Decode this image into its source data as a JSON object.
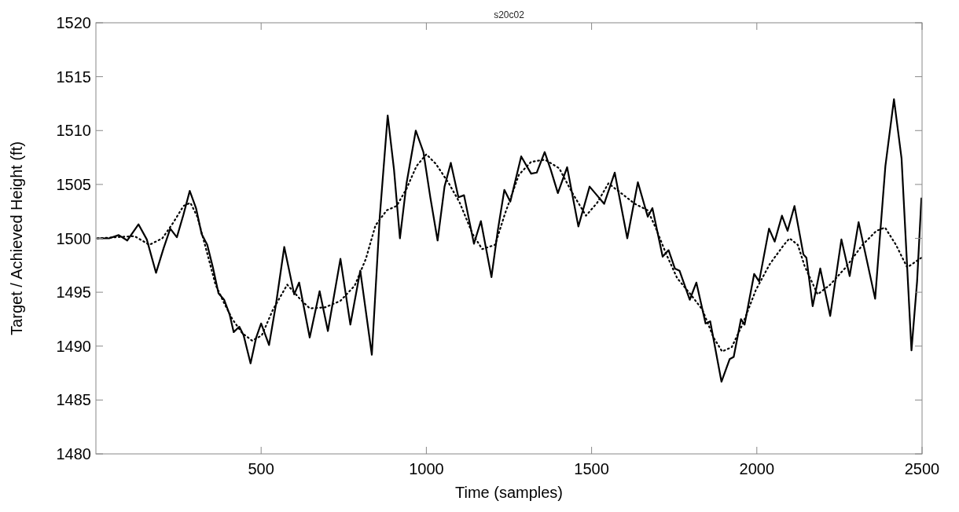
{
  "chart_data": {
    "type": "line",
    "title": "s20c02",
    "xlabel": "Time (samples)",
    "ylabel": "Target / Achieved Height (ft)",
    "xlim": [
      0,
      2500
    ],
    "xticks": [
      500,
      1000,
      1500,
      2000,
      2500
    ],
    "ylim": [
      1480,
      1520
    ],
    "yticks": [
      1480,
      1485,
      1490,
      1495,
      1500,
      1505,
      1510,
      1515,
      1520
    ],
    "grid": false,
    "series": [
      {
        "color": "#000000",
        "line_style": "solid",
        "x": [
          4,
          40,
          69,
          95,
          129,
          154,
          182,
          205,
          225,
          245,
          265,
          284,
          303,
          320,
          337,
          354,
          371,
          388,
          405,
          417,
          434,
          447,
          468,
          485,
          500,
          524,
          545,
          570,
          600,
          615,
          647,
          677,
          702,
          740,
          770,
          800,
          835,
          859,
          883,
          902,
          920,
          940,
          968,
          991,
          1012,
          1034,
          1055,
          1074,
          1097,
          1114,
          1144,
          1165,
          1197,
          1216,
          1236,
          1254,
          1287,
          1317,
          1334,
          1358,
          1376,
          1398,
          1426,
          1460,
          1494,
          1538,
          1570,
          1608,
          1640,
          1670,
          1684,
          1715,
          1733,
          1752,
          1766,
          1797,
          1817,
          1845,
          1859,
          1893,
          1918,
          1930,
          1952,
          1963,
          1992,
          2007,
          2037,
          2054,
          2076,
          2093,
          2114,
          2141,
          2150,
          2169,
          2192,
          2222,
          2256,
          2281,
          2308,
          2358,
          2389,
          2415,
          2438,
          2468,
          2485,
          2498
        ],
        "values": [
          1500,
          1500,
          1500.3,
          1499.8,
          1501.3,
          1499.9,
          1496.8,
          1499.1,
          1500.9,
          1500.1,
          1502.2,
          1504.4,
          1502.8,
          1500.4,
          1499.4,
          1497.3,
          1494.9,
          1494.3,
          1492.9,
          1491.3,
          1491.8,
          1491.0,
          1488.4,
          1490.8,
          1492.1,
          1490.1,
          1493.9,
          1499.2,
          1494.8,
          1495.9,
          1490.8,
          1495.1,
          1491.4,
          1498.1,
          1492.0,
          1497.0,
          1489.2,
          1502.0,
          1511.4,
          1506.4,
          1500.0,
          1505.1,
          1510.0,
          1508.0,
          1503.8,
          1499.8,
          1504.8,
          1507.0,
          1503.8,
          1504.0,
          1499.5,
          1501.6,
          1496.4,
          1500.7,
          1504.5,
          1503.4,
          1507.6,
          1506.0,
          1506.1,
          1508.0,
          1506.4,
          1504.2,
          1506.6,
          1501.1,
          1504.8,
          1503.2,
          1506.1,
          1500.0,
          1505.2,
          1502.0,
          1502.8,
          1498.3,
          1498.9,
          1497.2,
          1497.0,
          1494.3,
          1495.9,
          1492.1,
          1492.3,
          1486.7,
          1488.8,
          1489.0,
          1492.5,
          1492.0,
          1496.7,
          1496.0,
          1500.9,
          1499.7,
          1502.1,
          1500.7,
          1503.0,
          1498.5,
          1498.2,
          1493.7,
          1497.2,
          1492.8,
          1499.9,
          1496.5,
          1501.5,
          1494.4,
          1506.7,
          1512.9,
          1507.4,
          1489.6,
          1496.0,
          1503.7
        ]
      },
      {
        "color": "#000000",
        "line_style": "dotted",
        "x": [
          4,
          57,
          117,
          162,
          201,
          235,
          265,
          286,
          307,
          337,
          362,
          388,
          413,
          443,
          473,
          502,
          536,
          579,
          617,
          647,
          694,
          740,
          783,
          817,
          846,
          880,
          910,
          940,
          970,
          1000,
          1029,
          1068,
          1101,
          1140,
          1169,
          1208,
          1237,
          1280,
          1317,
          1359,
          1402,
          1440,
          1483,
          1517,
          1551,
          1589,
          1631,
          1670,
          1695,
          1725,
          1759,
          1797,
          1835,
          1869,
          1895,
          1924,
          1958,
          1997,
          2039,
          2082,
          2099,
          2124,
          2145,
          2184,
          2222,
          2269,
          2320,
          2362,
          2388,
          2421,
          2455,
          2498
        ],
        "values": [
          1500,
          1500.1,
          1500.2,
          1499.4,
          1500.0,
          1501.5,
          1503.0,
          1503.3,
          1502.0,
          1498.6,
          1495.7,
          1494.0,
          1492.5,
          1491.2,
          1490.5,
          1491.0,
          1493.4,
          1495.7,
          1494.4,
          1493.5,
          1493.6,
          1494.2,
          1495.6,
          1498.1,
          1501.2,
          1502.6,
          1503.0,
          1504.6,
          1506.7,
          1507.8,
          1506.9,
          1505.1,
          1503.3,
          1500.4,
          1499.0,
          1499.4,
          1502.2,
          1505.9,
          1507.1,
          1507.3,
          1506.5,
          1504.3,
          1502.1,
          1503.3,
          1505.1,
          1504.2,
          1503.2,
          1502.6,
          1500.9,
          1498.6,
          1496.3,
          1494.9,
          1493.4,
          1490.8,
          1489.5,
          1489.9,
          1492.1,
          1495.2,
          1497.6,
          1499.4,
          1500.0,
          1499.4,
          1497.4,
          1494.8,
          1495.7,
          1497.3,
          1499.4,
          1500.7,
          1501.0,
          1499.4,
          1497.3,
          1498.2
        ]
      }
    ]
  }
}
